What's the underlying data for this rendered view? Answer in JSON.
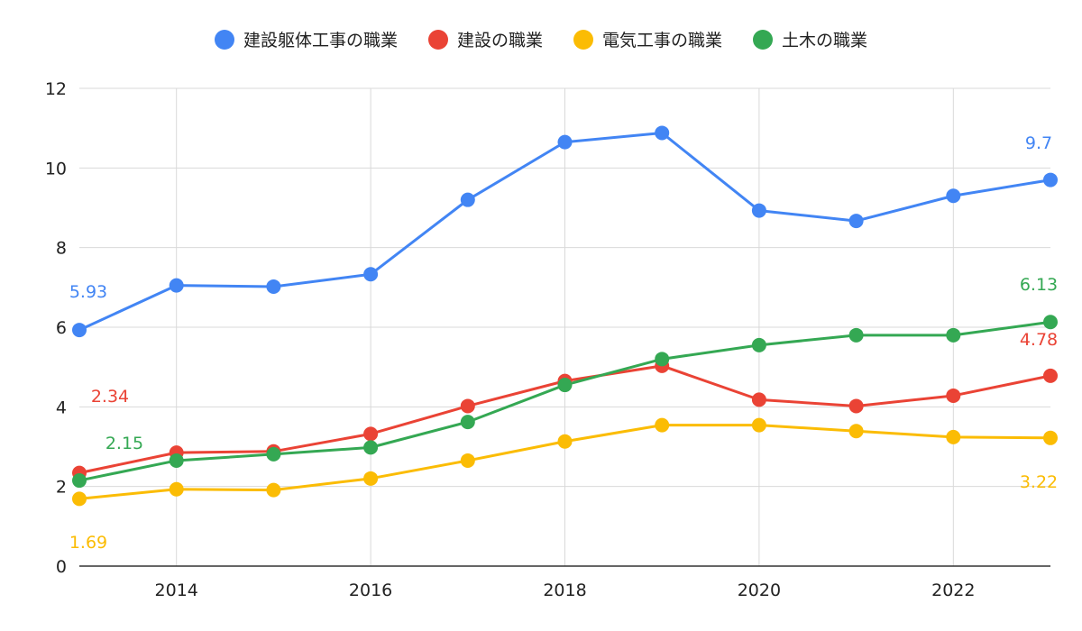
{
  "chart_data": {
    "type": "line",
    "title": "",
    "xlabel": "",
    "ylabel": "",
    "x": [
      2013,
      2014,
      2015,
      2016,
      2017,
      2018,
      2019,
      2020,
      2021,
      2022,
      2023
    ],
    "xlim": [
      2013,
      2023
    ],
    "ylim": [
      0,
      12
    ],
    "x_ticks": [
      "2014",
      "2016",
      "2018",
      "2020",
      "2022"
    ],
    "y_ticks": [
      "0",
      "2",
      "4",
      "6",
      "8",
      "10",
      "12"
    ],
    "grid": true,
    "legend_position": "top",
    "series": [
      {
        "name": "建設躯体工事の職業",
        "color": "#4285F4",
        "values": [
          5.93,
          7.05,
          7.02,
          7.33,
          9.2,
          10.65,
          10.88,
          8.93,
          8.67,
          9.3,
          9.7
        ],
        "labels": {
          "first": "5.93",
          "last": "9.7"
        }
      },
      {
        "name": "建設の職業",
        "color": "#EA4335",
        "values": [
          2.34,
          2.85,
          2.88,
          3.32,
          4.02,
          4.65,
          5.03,
          4.18,
          4.02,
          4.28,
          4.78
        ],
        "labels": {
          "first": "2.34",
          "last": "4.78"
        }
      },
      {
        "name": "電気工事の職業",
        "color": "#FBBC04",
        "values": [
          1.69,
          1.93,
          1.91,
          2.2,
          2.65,
          3.13,
          3.54,
          3.54,
          3.39,
          3.24,
          3.22
        ],
        "labels": {
          "first": "1.69",
          "last": "3.22"
        }
      },
      {
        "name": "土木の職業",
        "color": "#34A853",
        "values": [
          2.15,
          2.65,
          2.81,
          2.98,
          3.62,
          4.55,
          5.2,
          5.55,
          5.8,
          5.8,
          6.13
        ],
        "labels": {
          "first": "2.15",
          "last": "6.13"
        }
      }
    ]
  }
}
